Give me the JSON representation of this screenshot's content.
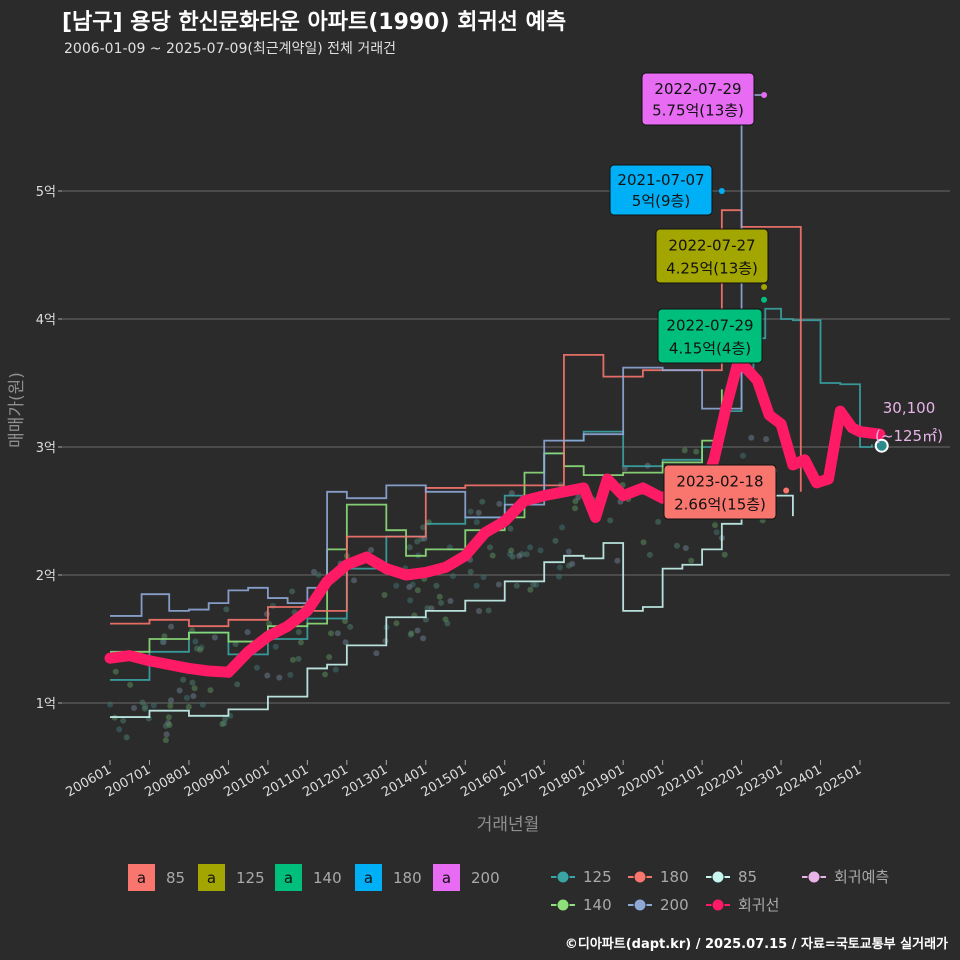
{
  "title": "[남구] 용당 한신문화타운 아파트(1990) 회귀선 예측",
  "subtitle": "2006-01-09 ~ 2025-07-09(최근계약일) 전체 거래건",
  "caption": "©디아파트(dapt.kr) / 2025.07.15 / 자료=국토교통부 실거래가",
  "colors": {
    "s85": "#f8766d",
    "s125": "#a3a500",
    "s140": "#00bf7d",
    "s180": "#00b0f6",
    "s200": "#e76bf3",
    "reg": "#ff1a66",
    "pred": "#e8b4e8",
    "trend85": "#c8f5f0",
    "trend125": "#3aa3a3",
    "trend140": "#8ee07a",
    "trend200": "#8fa8d8"
  },
  "chart_data": {
    "type": "line",
    "xlabel": "거래년월",
    "ylabel": "매매가(원)",
    "x_ticks": [
      "200601",
      "200701",
      "200801",
      "200901",
      "201001",
      "201101",
      "201201",
      "201301",
      "201401",
      "201501",
      "201601",
      "201701",
      "201801",
      "201901",
      "202001",
      "202101",
      "202201",
      "202301",
      "202401",
      "202501"
    ],
    "y_ticks": [
      {
        "v": 1,
        "label": "1억"
      },
      {
        "v": 2,
        "label": "2억"
      },
      {
        "v": 3,
        "label": "3억"
      },
      {
        "v": 4,
        "label": "4억"
      },
      {
        "v": 5,
        "label": "5억"
      }
    ],
    "ylim": [
      0.55,
      5.9
    ],
    "y_unit": "억",
    "regression": {
      "name": "회귀선",
      "x": [
        2006.0,
        2006.5,
        2007.0,
        2007.5,
        2008.0,
        2008.5,
        2009.0,
        2009.5,
        2010.0,
        2010.5,
        2011.0,
        2011.5,
        2012.0,
        2012.5,
        2013.0,
        2013.5,
        2014.0,
        2014.5,
        2015.0,
        2015.5,
        2016.0,
        2016.5,
        2017.0,
        2017.5,
        2018.0,
        2018.3,
        2018.6,
        2019.0,
        2019.5,
        2020.0,
        2020.5,
        2021.0,
        2021.3,
        2021.6,
        2021.9,
        2022.1,
        2022.4,
        2022.7,
        2023.0,
        2023.3,
        2023.6,
        2023.9,
        2024.2,
        2024.5,
        2024.8,
        2025.0,
        2025.5
      ],
      "y": [
        1.35,
        1.37,
        1.33,
        1.3,
        1.27,
        1.25,
        1.24,
        1.4,
        1.52,
        1.6,
        1.72,
        1.95,
        2.08,
        2.14,
        2.05,
        2.0,
        2.02,
        2.06,
        2.15,
        2.33,
        2.42,
        2.58,
        2.62,
        2.65,
        2.68,
        2.45,
        2.75,
        2.62,
        2.68,
        2.6,
        2.7,
        2.65,
        2.9,
        3.3,
        3.65,
        3.62,
        3.52,
        3.25,
        3.18,
        2.86,
        2.9,
        2.72,
        2.75,
        3.28,
        3.15,
        3.12,
        3.1
      ]
    },
    "trend_lines": [
      {
        "size": "85",
        "x": [
          2006.0,
          2007.0,
          2008.0,
          2009.0,
          2010.0,
          2011.0,
          2011.5,
          2012.0,
          2013.0,
          2014.0,
          2015.0,
          2016.0,
          2017.0,
          2017.5,
          2018.0,
          2018.5,
          2019.0,
          2019.5,
          2020.0,
          2020.5,
          2021.0,
          2021.5,
          2022.0,
          2022.5,
          2023.0,
          2023.3
        ],
        "y": [
          0.89,
          0.94,
          0.9,
          0.95,
          1.05,
          1.27,
          1.3,
          1.45,
          1.67,
          1.72,
          1.8,
          1.95,
          2.1,
          2.15,
          2.13,
          2.25,
          1.72,
          1.75,
          2.05,
          2.08,
          2.2,
          2.4,
          2.52,
          2.62,
          2.62,
          2.46
        ]
      },
      {
        "size": "125",
        "x": [
          2006.0,
          2007.0,
          2008.0,
          2009.0,
          2010.0,
          2011.0,
          2012.0,
          2013.0,
          2014.0,
          2015.0,
          2016.0,
          2017.0,
          2017.5,
          2018.0,
          2019.0,
          2020.0,
          2021.0,
          2021.5,
          2022.0,
          2022.3,
          2022.6,
          2023.0,
          2023.3,
          2024.0,
          2024.5,
          2025.0,
          2025.3
        ],
        "y": [
          1.18,
          1.4,
          1.55,
          1.38,
          1.5,
          1.66,
          2.05,
          2.3,
          2.4,
          2.45,
          2.62,
          2.95,
          3.05,
          3.12,
          2.85,
          2.9,
          3.0,
          3.28,
          3.6,
          3.85,
          4.08,
          4.0,
          3.99,
          3.5,
          3.49,
          3.0,
          3.02
        ]
      },
      {
        "size": "140",
        "x": [
          2006.0,
          2007.0,
          2008.0,
          2009.0,
          2010.0,
          2011.0,
          2011.5,
          2012.0,
          2013.0,
          2013.5,
          2014.0,
          2015.0,
          2016.0,
          2016.5,
          2017.0,
          2017.5,
          2018.0,
          2019.0,
          2020.0,
          2021.0,
          2021.5
        ],
        "y": [
          1.4,
          1.5,
          1.55,
          1.48,
          1.6,
          1.62,
          2.2,
          2.55,
          2.35,
          2.15,
          2.2,
          2.35,
          2.45,
          2.8,
          2.95,
          2.85,
          2.78,
          2.8,
          2.88,
          3.05,
          3.45
        ]
      },
      {
        "size": "180",
        "x": [
          2006.0,
          2007.0,
          2008.0,
          2009.0,
          2010.0,
          2011.0,
          2012.0,
          2012.5,
          2013.0,
          2014.0,
          2015.0,
          2017.5,
          2018.5,
          2019.5,
          2021.5,
          2022.0,
          2023.5
        ],
        "y": [
          1.62,
          1.65,
          1.6,
          1.65,
          1.75,
          1.72,
          2.3,
          2.3,
          2.3,
          2.68,
          2.7,
          3.72,
          3.55,
          3.6,
          4.85,
          4.72,
          2.65
        ]
      },
      {
        "size": "200",
        "x": [
          2006.0,
          2006.8,
          2007.5,
          2008.0,
          2008.5,
          2009.0,
          2009.5,
          2010.0,
          2010.5,
          2011.0,
          2011.5,
          2012.0,
          2013.0,
          2014.0,
          2015.0,
          2016.0,
          2017.0,
          2018.0,
          2019.0,
          2020.0,
          2021.0,
          2022.0,
          2022.5
        ],
        "y": [
          1.68,
          1.85,
          1.72,
          1.73,
          1.78,
          1.88,
          1.9,
          1.82,
          1.78,
          1.9,
          2.65,
          2.6,
          2.7,
          2.65,
          2.45,
          2.55,
          3.05,
          3.1,
          3.62,
          3.6,
          3.3,
          5.75,
          5.75
        ]
      }
    ],
    "highlights": [
      {
        "size": "85",
        "x": 2023.13,
        "y": 2.66,
        "date": "2023-02-18",
        "value": "2.66억(15층)"
      },
      {
        "size": "125",
        "x": 2022.57,
        "y": 4.25,
        "date": "2022-07-27",
        "value": "4.25억(13층)"
      },
      {
        "size": "140",
        "x": 2022.57,
        "y": 4.15,
        "date": "2022-07-29",
        "value": "4.15억(4층)"
      },
      {
        "size": "180",
        "x": 2021.5,
        "y": 5.0,
        "date": "2021-07-07",
        "value": "5억(9층)"
      },
      {
        "size": "200",
        "x": 2022.57,
        "y": 5.75,
        "date": "2022-07-29",
        "value": "5.75억(13층)"
      }
    ],
    "prediction": {
      "x": 2025.55,
      "y": 3.01,
      "label_value": "30,100",
      "label_area": "(~125㎡)"
    },
    "legend_fill": [
      {
        "key": "s85",
        "label": "85"
      },
      {
        "key": "s125",
        "label": "125"
      },
      {
        "key": "s140",
        "label": "140"
      },
      {
        "key": "s180",
        "label": "180"
      },
      {
        "key": "s200",
        "label": "200"
      }
    ],
    "legend_line": [
      {
        "key": "trend125",
        "label": "125"
      },
      {
        "key": "s85",
        "label": "180"
      },
      {
        "key": "trend85",
        "label": "85"
      },
      {
        "key": "pred",
        "label": "회귀예측"
      },
      {
        "key": "trend140",
        "label": "140"
      },
      {
        "key": "trend200",
        "label": "200"
      },
      {
        "key": "reg",
        "label": "회귀선"
      }
    ]
  }
}
